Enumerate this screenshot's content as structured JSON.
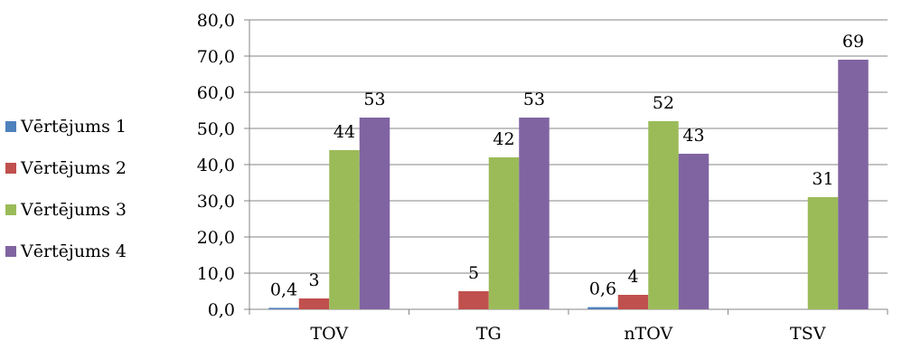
{
  "chart_data": {
    "type": "bar",
    "categories": [
      "TOV",
      "TG",
      "nTOV",
      "TSV"
    ],
    "series": [
      {
        "name": "Vērtējums 1",
        "color": "#4F81BD",
        "values": [
          0.4,
          0,
          0.6,
          0
        ],
        "labels": [
          "0,4",
          "",
          "0,6",
          ""
        ]
      },
      {
        "name": "Vērtējums 2",
        "color": "#C0504D",
        "values": [
          3,
          5,
          4,
          0
        ],
        "labels": [
          "3",
          "5",
          "4",
          ""
        ]
      },
      {
        "name": "Vērtējums 3",
        "color": "#9BBB59",
        "values": [
          44,
          42,
          52,
          31
        ],
        "labels": [
          "44",
          "42",
          "52",
          "31"
        ]
      },
      {
        "name": "Vērtējums 4",
        "color": "#8064A2",
        "values": [
          53,
          53,
          43,
          69
        ],
        "labels": [
          "53",
          "53",
          "43",
          "69"
        ]
      }
    ],
    "ylim": [
      0,
      80
    ],
    "yticks": [
      "0,0",
      "10,0",
      "20,0",
      "30,0",
      "40,0",
      "50,0",
      "60,0",
      "70,0",
      "80,0"
    ],
    "grid": true,
    "legend_position": "left"
  }
}
